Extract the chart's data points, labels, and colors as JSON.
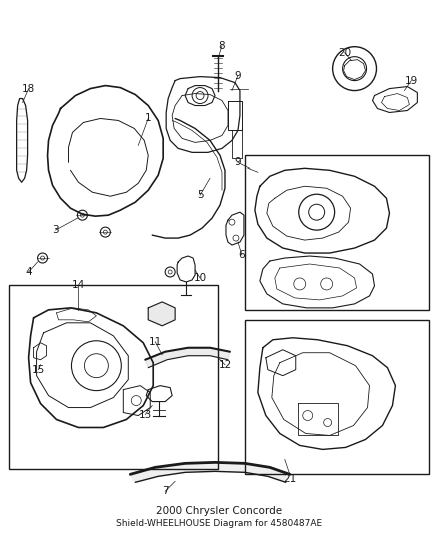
{
  "title": "2000 Chrysler Concorde",
  "subtitle": "Shield-WHEELHOUSE Diagram for 4580487AE",
  "bg": "#ffffff",
  "lc": "#1a1a1a",
  "fig_w": 4.38,
  "fig_h": 5.33,
  "dpi": 100
}
